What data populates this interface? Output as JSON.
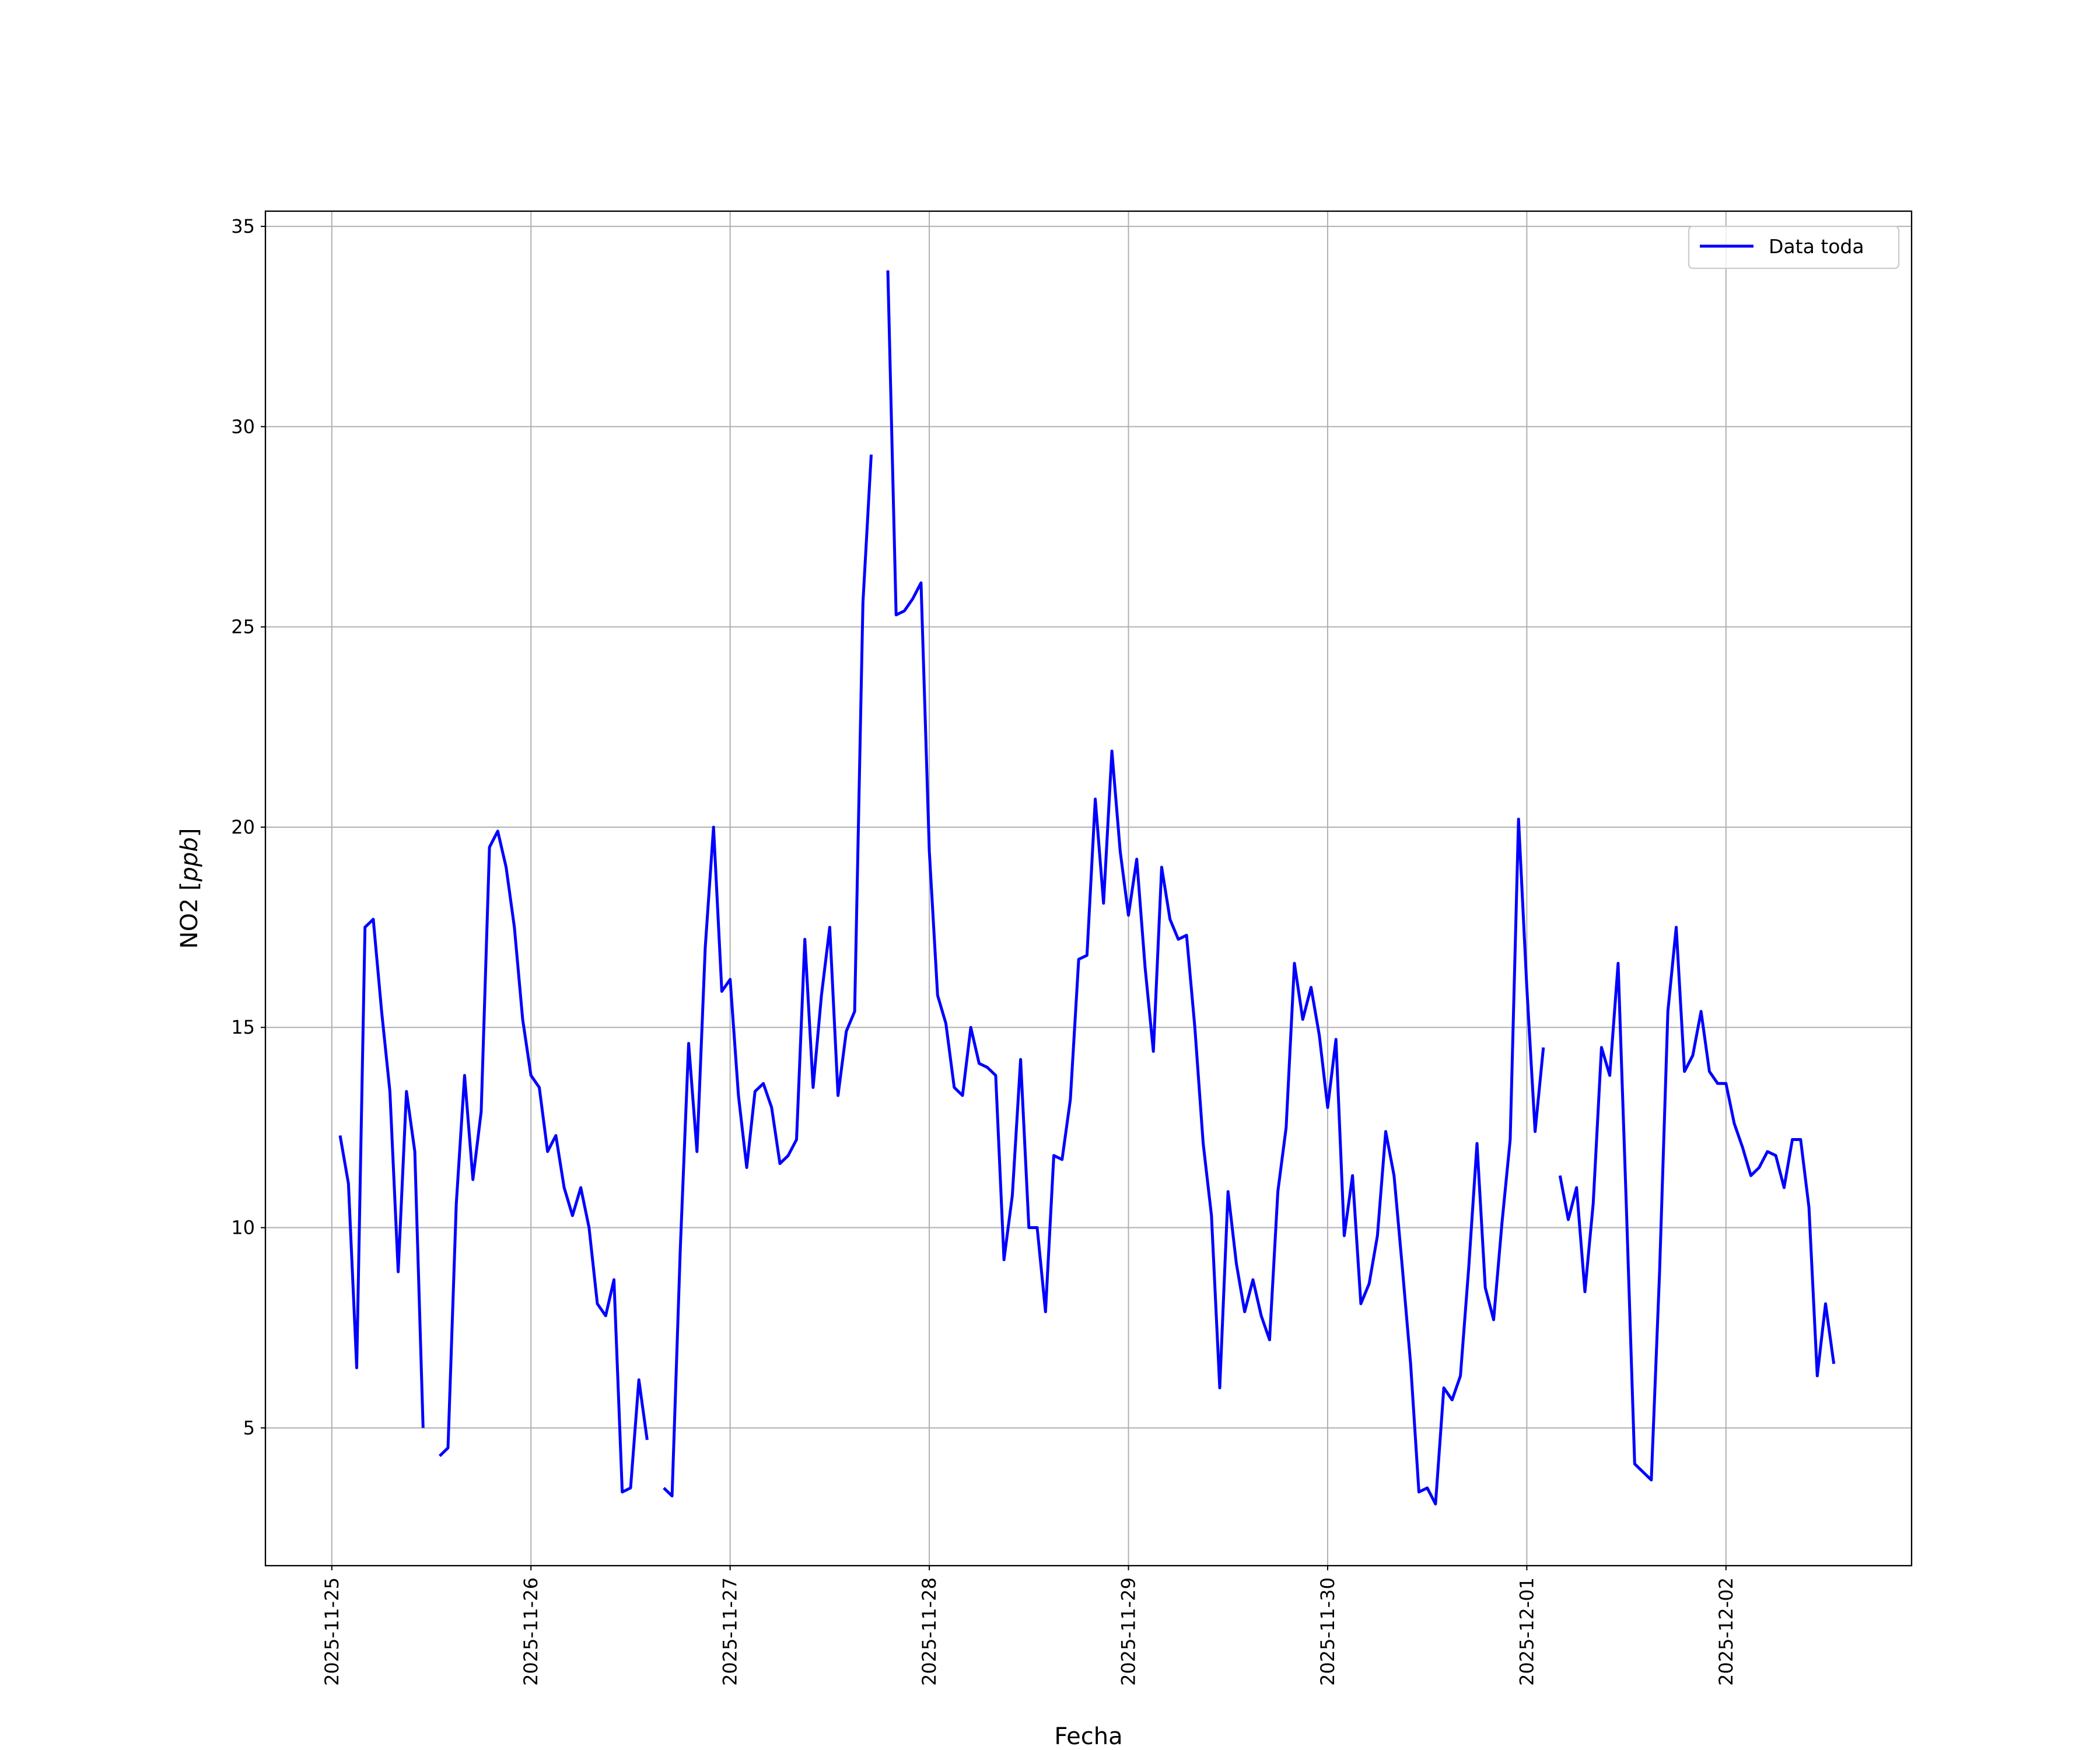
{
  "chart_data": {
    "type": "line",
    "title": "",
    "xlabel": "Fecha",
    "ylabel": "NO2 [",
    "ylabel_unit": "ppb",
    "ylabel_close": "]",
    "ylim": [
      1.56,
      35.38
    ],
    "xlim": [
      "2025-11-24 16:00",
      "2025-12-02 22:22"
    ],
    "grid": true,
    "legend_position": "top-right",
    "y_ticks": [
      5,
      10,
      15,
      20,
      25,
      30,
      35
    ],
    "x_ticks": [
      "2025-11-25",
      "2025-11-26",
      "2025-11-27",
      "2025-11-28",
      "2025-11-29",
      "2025-11-30",
      "2025-12-01",
      "2025-12-02"
    ],
    "colors": {
      "series": "#0000ff",
      "grid": "#b0b0b0",
      "axes": "#000000",
      "legend_border": "#cccccc"
    },
    "series": [
      {
        "name": "Data toda",
        "x": [
          "2025-11-25 01:00",
          "2025-11-25 02:00",
          "2025-11-25 03:00",
          "2025-11-25 04:00",
          "2025-11-25 05:00",
          "2025-11-25 06:00",
          "2025-11-25 07:00",
          "2025-11-25 08:00",
          "2025-11-25 09:00",
          "2025-11-25 10:00",
          "2025-11-25 11:00",
          "2025-11-25 12:00",
          "2025-11-25 13:00",
          "2025-11-25 14:00",
          "2025-11-25 15:00",
          "2025-11-25 16:00",
          "2025-11-25 17:00",
          "2025-11-25 18:00",
          "2025-11-25 19:00",
          "2025-11-25 20:00",
          "2025-11-25 21:00",
          "2025-11-25 22:00",
          "2025-11-25 23:00",
          "2025-11-26 00:00",
          "2025-11-26 01:00",
          "2025-11-26 02:00",
          "2025-11-26 03:00",
          "2025-11-26 04:00",
          "2025-11-26 05:00",
          "2025-11-26 06:00",
          "2025-11-26 07:00",
          "2025-11-26 08:00",
          "2025-11-26 09:00",
          "2025-11-26 10:00",
          "2025-11-26 11:00",
          "2025-11-26 12:00",
          "2025-11-26 13:00",
          "2025-11-26 14:00",
          "2025-11-26 15:00",
          "2025-11-26 16:00",
          "2025-11-26 17:00",
          "2025-11-26 18:00",
          "2025-11-26 19:00",
          "2025-11-26 20:00",
          "2025-11-26 21:00",
          "2025-11-26 22:00",
          "2025-11-26 23:00",
          "2025-11-27 00:00",
          "2025-11-27 01:00",
          "2025-11-27 02:00",
          "2025-11-27 03:00",
          "2025-11-27 04:00",
          "2025-11-27 05:00",
          "2025-11-27 06:00",
          "2025-11-27 07:00",
          "2025-11-27 08:00",
          "2025-11-27 09:00",
          "2025-11-27 10:00",
          "2025-11-27 11:00",
          "2025-11-27 12:00",
          "2025-11-27 13:00",
          "2025-11-27 14:00",
          "2025-11-27 15:00",
          "2025-11-27 16:00",
          "2025-11-27 17:00",
          "2025-11-27 18:00",
          "2025-11-27 19:00",
          "2025-11-27 20:00",
          "2025-11-27 21:00",
          "2025-11-27 22:00",
          "2025-11-27 23:00",
          "2025-11-28 00:00",
          "2025-11-28 01:00",
          "2025-11-28 02:00",
          "2025-11-28 03:00",
          "2025-11-28 04:00",
          "2025-11-28 05:00",
          "2025-11-28 06:00",
          "2025-11-28 07:00",
          "2025-11-28 08:00",
          "2025-11-28 09:00",
          "2025-11-28 10:00",
          "2025-11-28 11:00",
          "2025-11-28 12:00",
          "2025-11-28 13:00",
          "2025-11-28 14:00",
          "2025-11-28 15:00",
          "2025-11-28 16:00",
          "2025-11-28 17:00",
          "2025-11-28 18:00",
          "2025-11-28 19:00",
          "2025-11-28 20:00",
          "2025-11-28 21:00",
          "2025-11-28 22:00",
          "2025-11-28 23:00",
          "2025-11-29 00:00",
          "2025-11-29 01:00",
          "2025-11-29 02:00",
          "2025-11-29 03:00",
          "2025-11-29 04:00",
          "2025-11-29 05:00",
          "2025-11-29 06:00",
          "2025-11-29 07:00",
          "2025-11-29 08:00",
          "2025-11-29 09:00",
          "2025-11-29 10:00",
          "2025-11-29 11:00",
          "2025-11-29 12:00",
          "2025-11-29 13:00",
          "2025-11-29 14:00",
          "2025-11-29 15:00",
          "2025-11-29 16:00",
          "2025-11-29 17:00",
          "2025-11-29 18:00",
          "2025-11-29 19:00",
          "2025-11-29 20:00",
          "2025-11-29 21:00",
          "2025-11-29 22:00",
          "2025-11-29 23:00",
          "2025-11-30 00:00",
          "2025-11-30 01:00",
          "2025-11-30 02:00",
          "2025-11-30 03:00",
          "2025-11-30 04:00",
          "2025-11-30 05:00",
          "2025-11-30 06:00",
          "2025-11-30 07:00",
          "2025-11-30 08:00",
          "2025-11-30 09:00",
          "2025-11-30 10:00",
          "2025-11-30 11:00",
          "2025-11-30 12:00",
          "2025-11-30 13:00",
          "2025-11-30 14:00",
          "2025-11-30 15:00",
          "2025-11-30 16:00",
          "2025-11-30 17:00",
          "2025-11-30 18:00",
          "2025-11-30 19:00",
          "2025-11-30 20:00",
          "2025-11-30 21:00",
          "2025-11-30 22:00",
          "2025-11-30 23:00",
          "2025-12-01 00:00",
          "2025-12-01 01:00",
          "2025-12-01 02:00",
          "2025-12-01 03:00",
          "2025-12-01 04:00",
          "2025-12-01 05:00",
          "2025-12-01 06:00",
          "2025-12-01 07:00",
          "2025-12-01 08:00",
          "2025-12-01 09:00",
          "2025-12-01 10:00",
          "2025-12-01 11:00",
          "2025-12-01 12:00",
          "2025-12-01 13:00",
          "2025-12-01 14:00",
          "2025-12-01 15:00",
          "2025-12-01 16:00",
          "2025-12-01 17:00",
          "2025-12-01 18:00",
          "2025-12-01 19:00",
          "2025-12-01 20:00",
          "2025-12-01 21:00",
          "2025-12-01 22:00",
          "2025-12-01 23:00",
          "2025-12-02 00:00",
          "2025-12-02 01:00",
          "2025-12-02 02:00",
          "2025-12-02 03:00",
          "2025-12-02 04:00",
          "2025-12-02 05:00",
          "2025-12-02 06:00",
          "2025-12-02 07:00",
          "2025-12-02 08:00",
          "2025-12-02 09:00",
          "2025-12-02 10:00",
          "2025-12-02 11:00",
          "2025-12-02 12:00",
          "2025-12-02 13:00"
        ],
        "values": [
          12.3,
          11.1,
          6.5,
          17.5,
          17.7,
          15.4,
          13.4,
          8.9,
          13.4,
          11.9,
          5.0,
          null,
          4.3,
          4.5,
          10.6,
          13.8,
          11.2,
          12.9,
          19.5,
          19.9,
          19.0,
          17.5,
          15.2,
          13.8,
          13.5,
          11.9,
          12.3,
          11.0,
          10.3,
          11.0,
          10.0,
          8.1,
          7.8,
          8.7,
          3.4,
          3.5,
          6.2,
          4.7,
          null,
          3.5,
          3.3,
          9.5,
          14.6,
          11.9,
          17.0,
          20.0,
          15.9,
          16.2,
          13.3,
          11.5,
          13.4,
          13.6,
          13.0,
          11.6,
          11.8,
          12.2,
          17.2,
          13.5,
          15.8,
          17.5,
          13.3,
          14.9,
          15.4,
          25.6,
          29.3,
          null,
          33.9,
          25.3,
          25.4,
          25.7,
          26.1,
          19.4,
          15.8,
          15.1,
          13.5,
          13.3,
          15.0,
          14.1,
          14.0,
          13.8,
          9.2,
          10.8,
          14.2,
          10.0,
          10.0,
          7.9,
          11.8,
          11.7,
          13.2,
          16.7,
          16.8,
          20.7,
          18.1,
          21.9,
          19.4,
          17.8,
          19.2,
          16.5,
          14.4,
          19.0,
          17.7,
          17.2,
          17.3,
          15.0,
          12.1,
          10.3,
          6.0,
          10.9,
          9.1,
          7.9,
          8.7,
          7.8,
          7.2,
          10.9,
          12.5,
          16.6,
          15.2,
          16.0,
          14.8,
          13.0,
          14.7,
          9.8,
          11.3,
          8.1,
          8.6,
          9.8,
          12.4,
          11.3,
          9.0,
          6.6,
          3.4,
          3.5,
          3.1,
          6.0,
          5.7,
          6.3,
          9.0,
          12.1,
          8.5,
          7.7,
          10.1,
          12.2,
          20.2,
          16.0,
          12.4,
          14.5,
          null,
          11.3,
          10.2,
          11.0,
          8.4,
          10.6,
          14.5,
          13.8,
          16.6,
          10.5,
          4.1,
          3.9,
          3.7,
          8.9,
          15.4,
          17.5,
          13.9,
          14.3,
          15.4,
          13.9,
          13.6,
          13.6,
          12.6,
          12.0,
          11.3,
          11.5,
          11.9,
          11.8,
          11.0,
          12.2,
          12.2,
          10.5,
          6.3,
          8.1,
          6.6
        ]
      }
    ]
  }
}
